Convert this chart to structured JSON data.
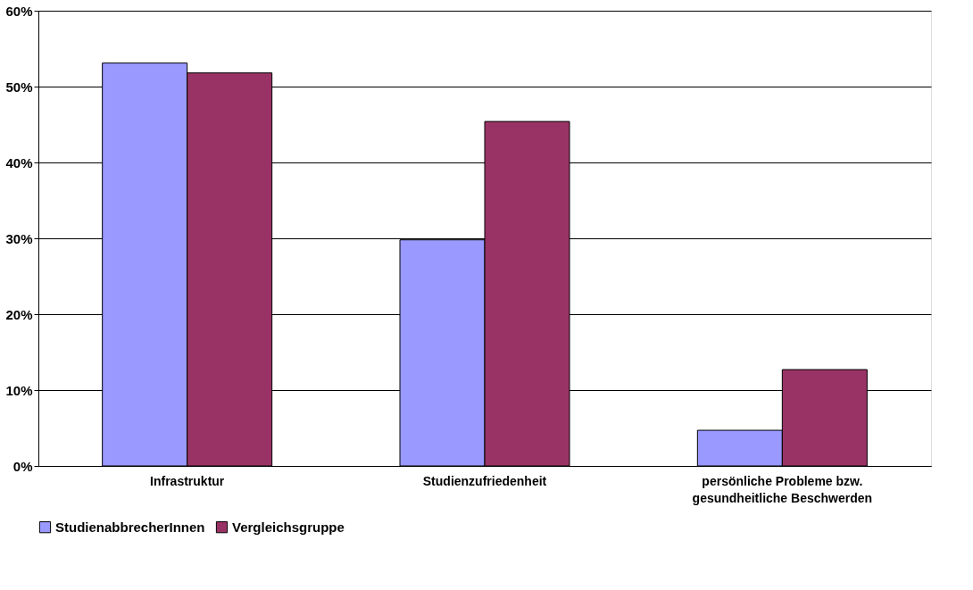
{
  "chart_data": {
    "type": "bar",
    "categories": [
      "Infrastruktur",
      "Studienzufriedenheit",
      "persönliche Probleme bzw.\ngesundheitliche Beschwerden"
    ],
    "series": [
      {
        "name": "StudienabbrecherInnen",
        "color": "#9999ff",
        "values": [
          53.1,
          29.8,
          4.7
        ]
      },
      {
        "name": "Vergleichsgruppe",
        "color": "#993366",
        "values": [
          51.8,
          45.4,
          12.7
        ]
      }
    ],
    "ylim": [
      0,
      60
    ],
    "yticks": [
      {
        "value": 0,
        "label": "0%"
      },
      {
        "value": 10,
        "label": "10%"
      },
      {
        "value": 20,
        "label": "20%"
      },
      {
        "value": 30,
        "label": "30%"
      },
      {
        "value": 40,
        "label": "40%"
      },
      {
        "value": 50,
        "label": "50%"
      },
      {
        "value": 60,
        "label": "60%"
      }
    ],
    "grid": "y",
    "legend": "bottom"
  }
}
